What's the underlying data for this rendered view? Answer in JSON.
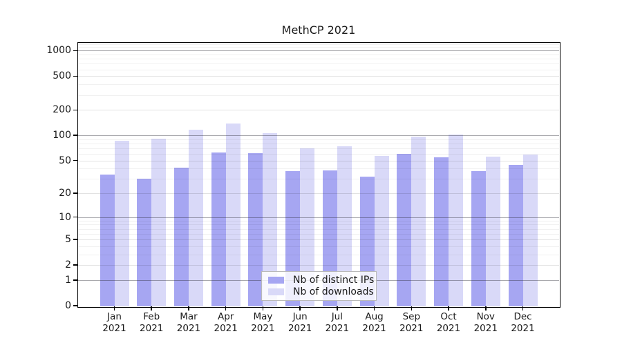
{
  "chart_data": {
    "type": "bar",
    "title": "MethCP 2021",
    "categories": [
      "Jan",
      "Feb",
      "Mar",
      "Apr",
      "May",
      "Jun",
      "Jul",
      "Aug",
      "Sep",
      "Oct",
      "Nov",
      "Dec"
    ],
    "year_label": "2021",
    "series": [
      {
        "name": "Nb of distinct IPs",
        "color": "#a6a6f2",
        "values": [
          34,
          30,
          41,
          62,
          61,
          37,
          38,
          32,
          60,
          55,
          37,
          44
        ]
      },
      {
        "name": "Nb of downloads",
        "color": "#d9d9f8",
        "values": [
          86,
          92,
          117,
          139,
          107,
          70,
          74,
          57,
          97,
          102,
          56,
          59
        ]
      }
    ],
    "yticks": [
      0,
      1,
      2,
      5,
      10,
      20,
      50,
      100,
      200,
      500,
      1000
    ],
    "yscale": "log1p",
    "ylim": [
      0,
      1225
    ],
    "grid": true,
    "legend_position": "inside-bottom-center"
  }
}
